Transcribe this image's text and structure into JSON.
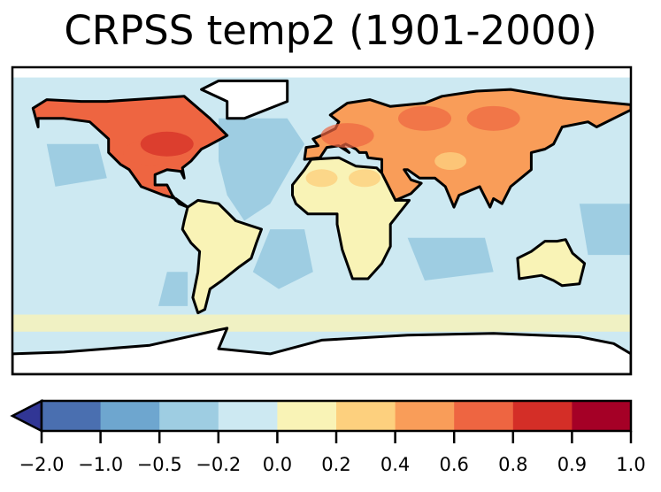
{
  "chart_data": {
    "type": "heatmap",
    "title": "CRPSS temp2 (1901-2000)",
    "projection": "equirectangular",
    "lon_range": [
      -180,
      180
    ],
    "lat_range": [
      -90,
      90
    ],
    "colorbar": {
      "boundaries": [
        -2.0,
        -1.0,
        -0.5,
        -0.2,
        0.0,
        0.2,
        0.4,
        0.6,
        0.8,
        0.9,
        1.0
      ],
      "tick_labels": [
        "−2.0",
        "−1.0",
        "−0.5",
        "−0.2",
        "0.0",
        "0.2",
        "0.4",
        "0.6",
        "0.8",
        "0.9",
        "1.0"
      ],
      "colors": [
        "#4a6fb0",
        "#6ea6cf",
        "#9ecde2",
        "#cde9f2",
        "#f9f3b6",
        "#fdd07e",
        "#f99d59",
        "#ee6541",
        "#d42e27",
        "#a50026"
      ],
      "extend": "min",
      "under_color": "#313695"
    },
    "summary_colors": {
      "ocean": "#cde9f2",
      "ocean_low": "#9ecde2",
      "north_america": "#ee6541",
      "eurasia": "#f99d59",
      "south_america": "#f9f3b6",
      "africa": "#f9f3b6",
      "australia": "#f9f3b6",
      "missing": "#ffffff"
    }
  }
}
